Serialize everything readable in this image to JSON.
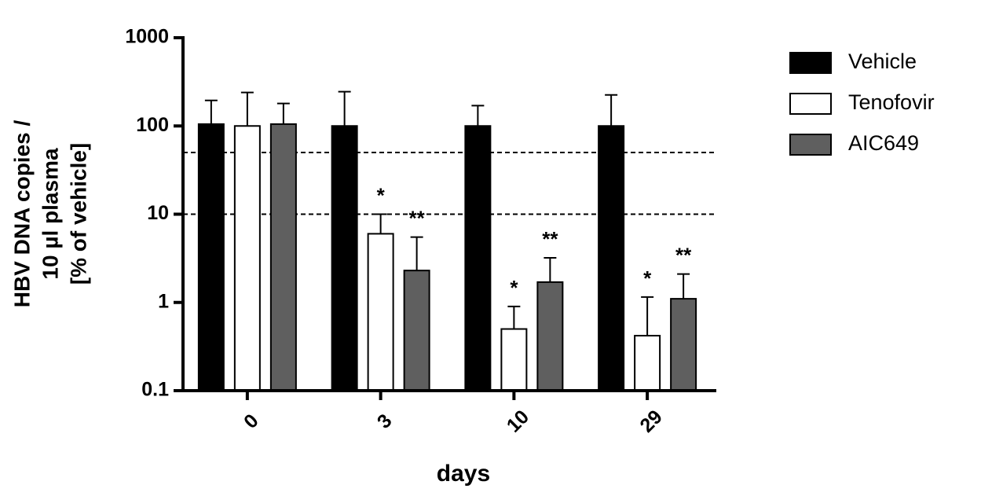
{
  "chart_data": {
    "type": "bar",
    "ylabel": [
      "HBV DNA copies /",
      "10 µl plasma",
      "[% of vehicle]"
    ],
    "xlabel": "days",
    "categories": [
      "0",
      "3",
      "10",
      "29"
    ],
    "series": [
      {
        "name": "Vehicle",
        "color": "#000000",
        "values": [
          105,
          100,
          100,
          100
        ],
        "errors": [
          90,
          145,
          70,
          125
        ],
        "annotations": [
          null,
          null,
          null,
          null
        ]
      },
      {
        "name": "Tenofovir",
        "color": "#ffffff",
        "values": [
          100,
          6,
          0.5,
          0.42
        ],
        "errors": [
          140,
          4,
          0.4,
          0.73
        ],
        "annotations": [
          null,
          "*",
          "*",
          "*"
        ]
      },
      {
        "name": "AIC649",
        "color": "#5f5f5f",
        "values": [
          105,
          2.3,
          1.7,
          1.1
        ],
        "errors": [
          75,
          3.2,
          1.5,
          1.0
        ],
        "annotations": [
          null,
          "**",
          "**",
          "**"
        ]
      }
    ],
    "log_scale": true,
    "ylim": [
      0.1,
      1000
    ],
    "yticks": [
      0.1,
      1,
      10,
      100,
      1000
    ],
    "reference_lines": [
      50,
      10
    ],
    "legend": "right"
  }
}
